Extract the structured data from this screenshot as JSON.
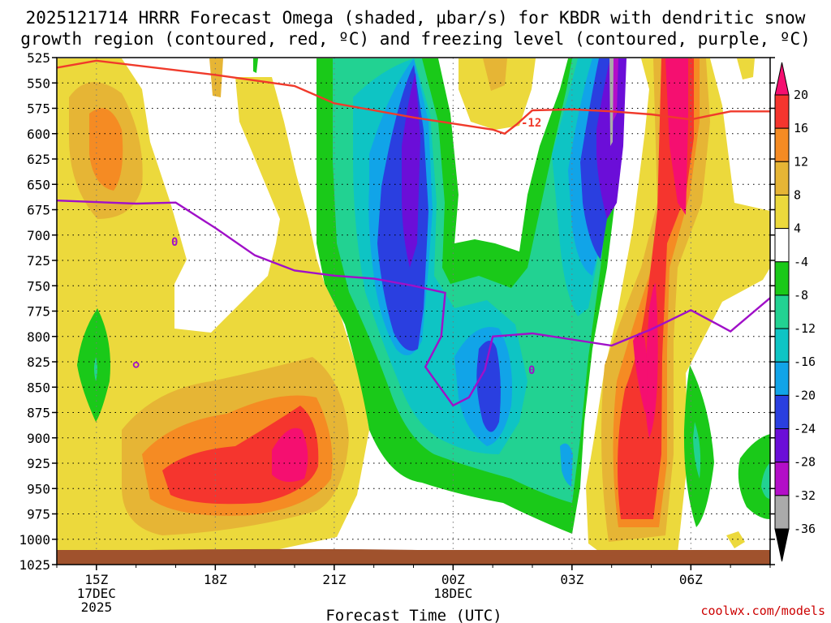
{
  "chart_data": {
    "type": "heatmap",
    "title_line1": "2025121714 HRRR Forecast Omega (shaded, µbar/s) for KBDR with dendritic snow",
    "title_line2": "growth region (contoured, red, ºC) and freezing level (contoured, purple, ºC)",
    "xlabel": "Forecast Time (UTC)",
    "credit": "coolwx.com/models",
    "y_ticks": [
      "525",
      "550",
      "575",
      "600",
      "625",
      "650",
      "675",
      "700",
      "725",
      "750",
      "775",
      "800",
      "825",
      "850",
      "875",
      "900",
      "925",
      "950",
      "975",
      "1000",
      "1025"
    ],
    "y_range": [
      525,
      1025
    ],
    "x_ticks": [
      {
        "h": 15,
        "label": "15Z",
        "sub1": "17DEC",
        "sub2": "2025"
      },
      {
        "h": 18,
        "label": "18Z",
        "sub1": "",
        "sub2": ""
      },
      {
        "h": 21,
        "label": "21Z",
        "sub1": "",
        "sub2": ""
      },
      {
        "h": 24,
        "label": "00Z",
        "sub1": "18DEC",
        "sub2": ""
      },
      {
        "h": 27,
        "label": "03Z",
        "sub1": "",
        "sub2": ""
      },
      {
        "h": 30,
        "label": "06Z",
        "sub1": "",
        "sub2": ""
      }
    ],
    "x_range_hours": [
      14,
      32
    ],
    "colorbar": {
      "labels": [
        "20",
        "16",
        "12",
        "8",
        "4",
        "-4",
        "-8",
        "-12",
        "-16",
        "-20",
        "-24",
        "-28",
        "-32",
        "-36"
      ],
      "colors": [
        "#f50f70",
        "#f5352e",
        "#f58b23",
        "#e6b535",
        "#ecd93c",
        "#ffffff",
        "#1ac919",
        "#22d292",
        "#0ec4c4",
        "#11a4e8",
        "#2a3fe0",
        "#6b0ed8",
        "#b30ec8",
        "#aaaaaa",
        "#000000"
      ]
    },
    "dendritic_contour": {
      "label": "-12",
      "points": [
        [
          14,
          535
        ],
        [
          15,
          528
        ],
        [
          18,
          542
        ],
        [
          20,
          553
        ],
        [
          21,
          570
        ],
        [
          22,
          577
        ],
        [
          23,
          584
        ],
        [
          24,
          590
        ],
        [
          25,
          596
        ],
        [
          25.3,
          600
        ],
        [
          25.6,
          591
        ],
        [
          26,
          577
        ],
        [
          27,
          576
        ],
        [
          28,
          578
        ],
        [
          29,
          581
        ],
        [
          30,
          586
        ],
        [
          31,
          578
        ],
        [
          32,
          578
        ]
      ]
    },
    "freezing_contour": {
      "label": "0",
      "points": [
        [
          14,
          666
        ],
        [
          16,
          669
        ],
        [
          17,
          668
        ],
        [
          18,
          693
        ],
        [
          19,
          720
        ],
        [
          20,
          735
        ],
        [
          21,
          740
        ],
        [
          22,
          743
        ],
        [
          23,
          750
        ],
        [
          23.8,
          757
        ],
        [
          23.7,
          800
        ],
        [
          23.3,
          830
        ],
        [
          24,
          868
        ],
        [
          24.4,
          860
        ],
        [
          24.8,
          833
        ],
        [
          25,
          800
        ],
        [
          26,
          797
        ],
        [
          27,
          803
        ],
        [
          28,
          809
        ],
        [
          29,
          793
        ],
        [
          30,
          774
        ],
        [
          31,
          795
        ],
        [
          32,
          762
        ]
      ]
    },
    "freezing_isolated": {
      "x": 16,
      "y": 828
    },
    "grid": "dotted",
    "legend": "colorbar-right"
  }
}
